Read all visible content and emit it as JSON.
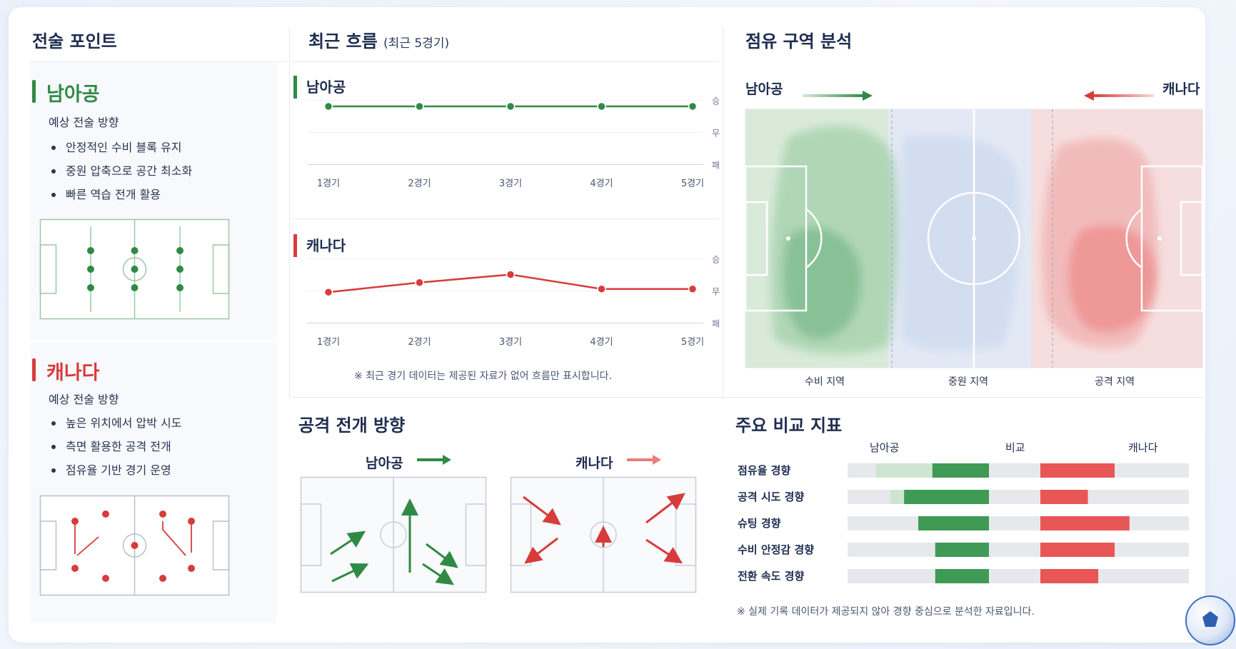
{
  "panels": {
    "tactics_title": "전술 포인트",
    "trend_title": "최근 흐름",
    "trend_subtitle": "(최근 5경기)",
    "possession_title": "점유 구역 분석",
    "attack_title": "공격 전개 방향",
    "metrics_title": "주요 비교 지표"
  },
  "teams": {
    "home": {
      "name": "남아공",
      "color": "#2f8a45"
    },
    "away": {
      "name": "캐나다",
      "color": "#d83b3b"
    }
  },
  "tactics": {
    "plan_label": "예상 전술 방향",
    "home_points": [
      "안정적인 수비 블록 유지",
      "중원 압축으로 공간 최소화",
      "빠른 역습 전개 활용"
    ],
    "away_points": [
      "높은 위치에서 압박 시도",
      "측면 활용한 공격 전개",
      "점유율 기반 경기 운영"
    ]
  },
  "trend_note": "※ 최근 경기 데이터는 제공된 자료가 없어 흐름만 표시합니다.",
  "possession_zones": [
    "수비 지역",
    "중원 지역",
    "공격 지역"
  ],
  "metrics_header": {
    "home": "남아공",
    "mid": "비교",
    "away": "캐나다"
  },
  "metrics_note": "※ 실제 기록 데이터가 제공되지 않아 경향 중심으로 분석한 자료입니다.",
  "chart_data": [
    {
      "type": "line",
      "team": "남아공",
      "categories": [
        "1경기",
        "2경기",
        "3경기",
        "4경기",
        "5경기"
      ],
      "y_ticks": [
        "승",
        "무",
        "패"
      ],
      "values": [
        2.8,
        2.8,
        2.8,
        2.8,
        2.8
      ],
      "ylim": [
        1,
        3
      ],
      "color": "#2f8a45"
    },
    {
      "type": "line",
      "team": "캐나다",
      "categories": [
        "1경기",
        "2경기",
        "3경기",
        "4경기",
        "5경기"
      ],
      "y_ticks": [
        "승",
        "무",
        "패"
      ],
      "values": [
        1.95,
        2.25,
        2.5,
        2.05,
        2.05
      ],
      "ylim": [
        1,
        3
      ],
      "color": "#d83b3b"
    },
    {
      "type": "bar",
      "orientation": "diverging",
      "categories": [
        "점유율 경향",
        "공격 시도 경향",
        "슈팅 경향",
        "수비 안정감 경향",
        "전환 속도 경향"
      ],
      "series": [
        {
          "name": "남아공",
          "values": [
            0.4,
            0.6,
            0.5,
            0.38,
            0.38
          ],
          "light": [
            0.8,
            0.7,
            0.0,
            0.0,
            0.0
          ],
          "color": "#3f9a55"
        },
        {
          "name": "캐나다",
          "values": [
            0.5,
            0.32,
            0.6,
            0.5,
            0.39
          ],
          "color": "#e85656"
        }
      ],
      "xlim": [
        0,
        1
      ]
    }
  ]
}
